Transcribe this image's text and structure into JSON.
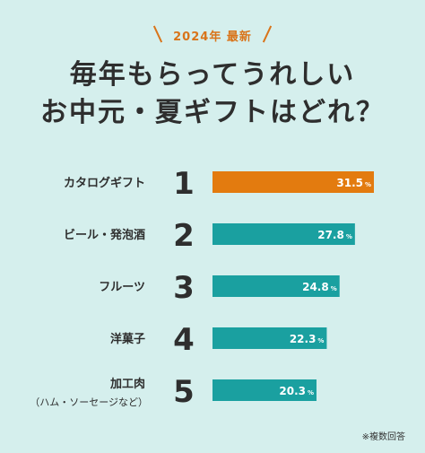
{
  "header": {
    "tag": "2024年 最新",
    "title_line1": "毎年もらってうれしい",
    "title_line2": "お中元・夏ギフトはどれ？"
  },
  "footnote": "※複数回答",
  "colors": {
    "first": "#e37b0f",
    "others": "#1aa0a0",
    "background": "#d5efed"
  },
  "chart_data": {
    "type": "bar",
    "orientation": "horizontal",
    "categories": [
      "カタログギフト",
      "ビール・発泡酒",
      "フルーツ",
      "洋菓子",
      "加工肉"
    ],
    "category_notes": [
      "",
      "",
      "",
      "",
      "（ハム・ソーセージなど）"
    ],
    "ranks": [
      "1",
      "2",
      "3",
      "4",
      "5"
    ],
    "values": [
      31.5,
      27.8,
      24.8,
      22.3,
      20.3
    ],
    "value_labels": [
      "31.5",
      "27.8",
      "24.8",
      "22.3",
      "20.3"
    ],
    "unit": "%",
    "xlim": [
      0,
      31.5
    ]
  }
}
